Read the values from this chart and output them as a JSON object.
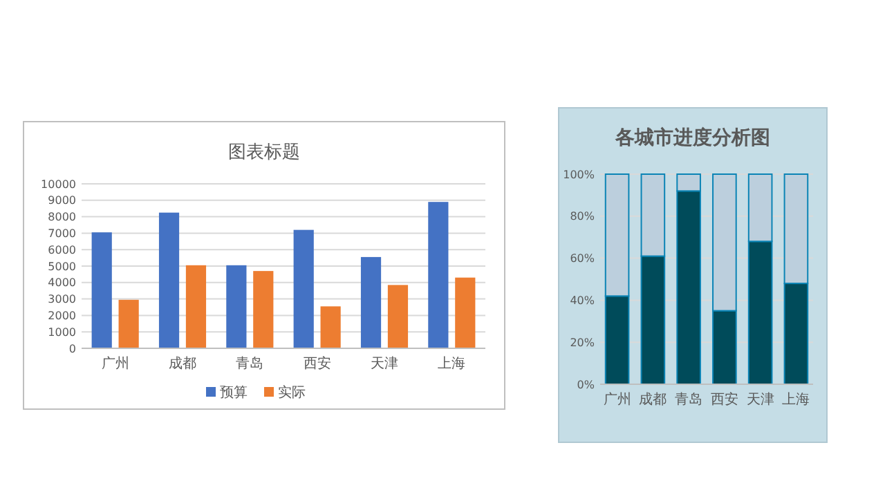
{
  "chart_data": [
    {
      "type": "bar",
      "title": "图表标题",
      "categories": [
        "广州",
        "成都",
        "青岛",
        "西安",
        "天津",
        "上海"
      ],
      "series": [
        {
          "name": "预算",
          "color": "#4472c4",
          "values": [
            7050,
            8250,
            5050,
            7200,
            5550,
            8900
          ]
        },
        {
          "name": "实际",
          "color": "#ed7d31",
          "values": [
            2950,
            5050,
            4700,
            2550,
            3850,
            4300
          ]
        }
      ],
      "ylim": [
        0,
        10000
      ],
      "yticks": [
        0,
        1000,
        2000,
        3000,
        4000,
        5000,
        6000,
        7000,
        8000,
        9000,
        10000
      ],
      "grid": "y",
      "legend": "bottom"
    },
    {
      "type": "bar",
      "title": "各城市进度分析图",
      "categories": [
        "广州",
        "成都",
        "青岛",
        "西安",
        "天津",
        "上海"
      ],
      "stacked": true,
      "series": [
        {
          "color": "#004b5a",
          "values": [
            42,
            61,
            92,
            35,
            68,
            48
          ]
        },
        {
          "color": "#bccfdd",
          "values": [
            58,
            39,
            8,
            65,
            32,
            52
          ]
        }
      ],
      "ylim": [
        0,
        100
      ],
      "yticks": [
        {
          "value": 0,
          "label": "0%"
        },
        {
          "value": 20,
          "label": "20%"
        },
        {
          "value": 40,
          "label": "40%"
        },
        {
          "value": 60,
          "label": "60%"
        },
        {
          "value": 80,
          "label": "80%"
        },
        {
          "value": 100,
          "label": "100%"
        }
      ],
      "grid": "y"
    }
  ]
}
